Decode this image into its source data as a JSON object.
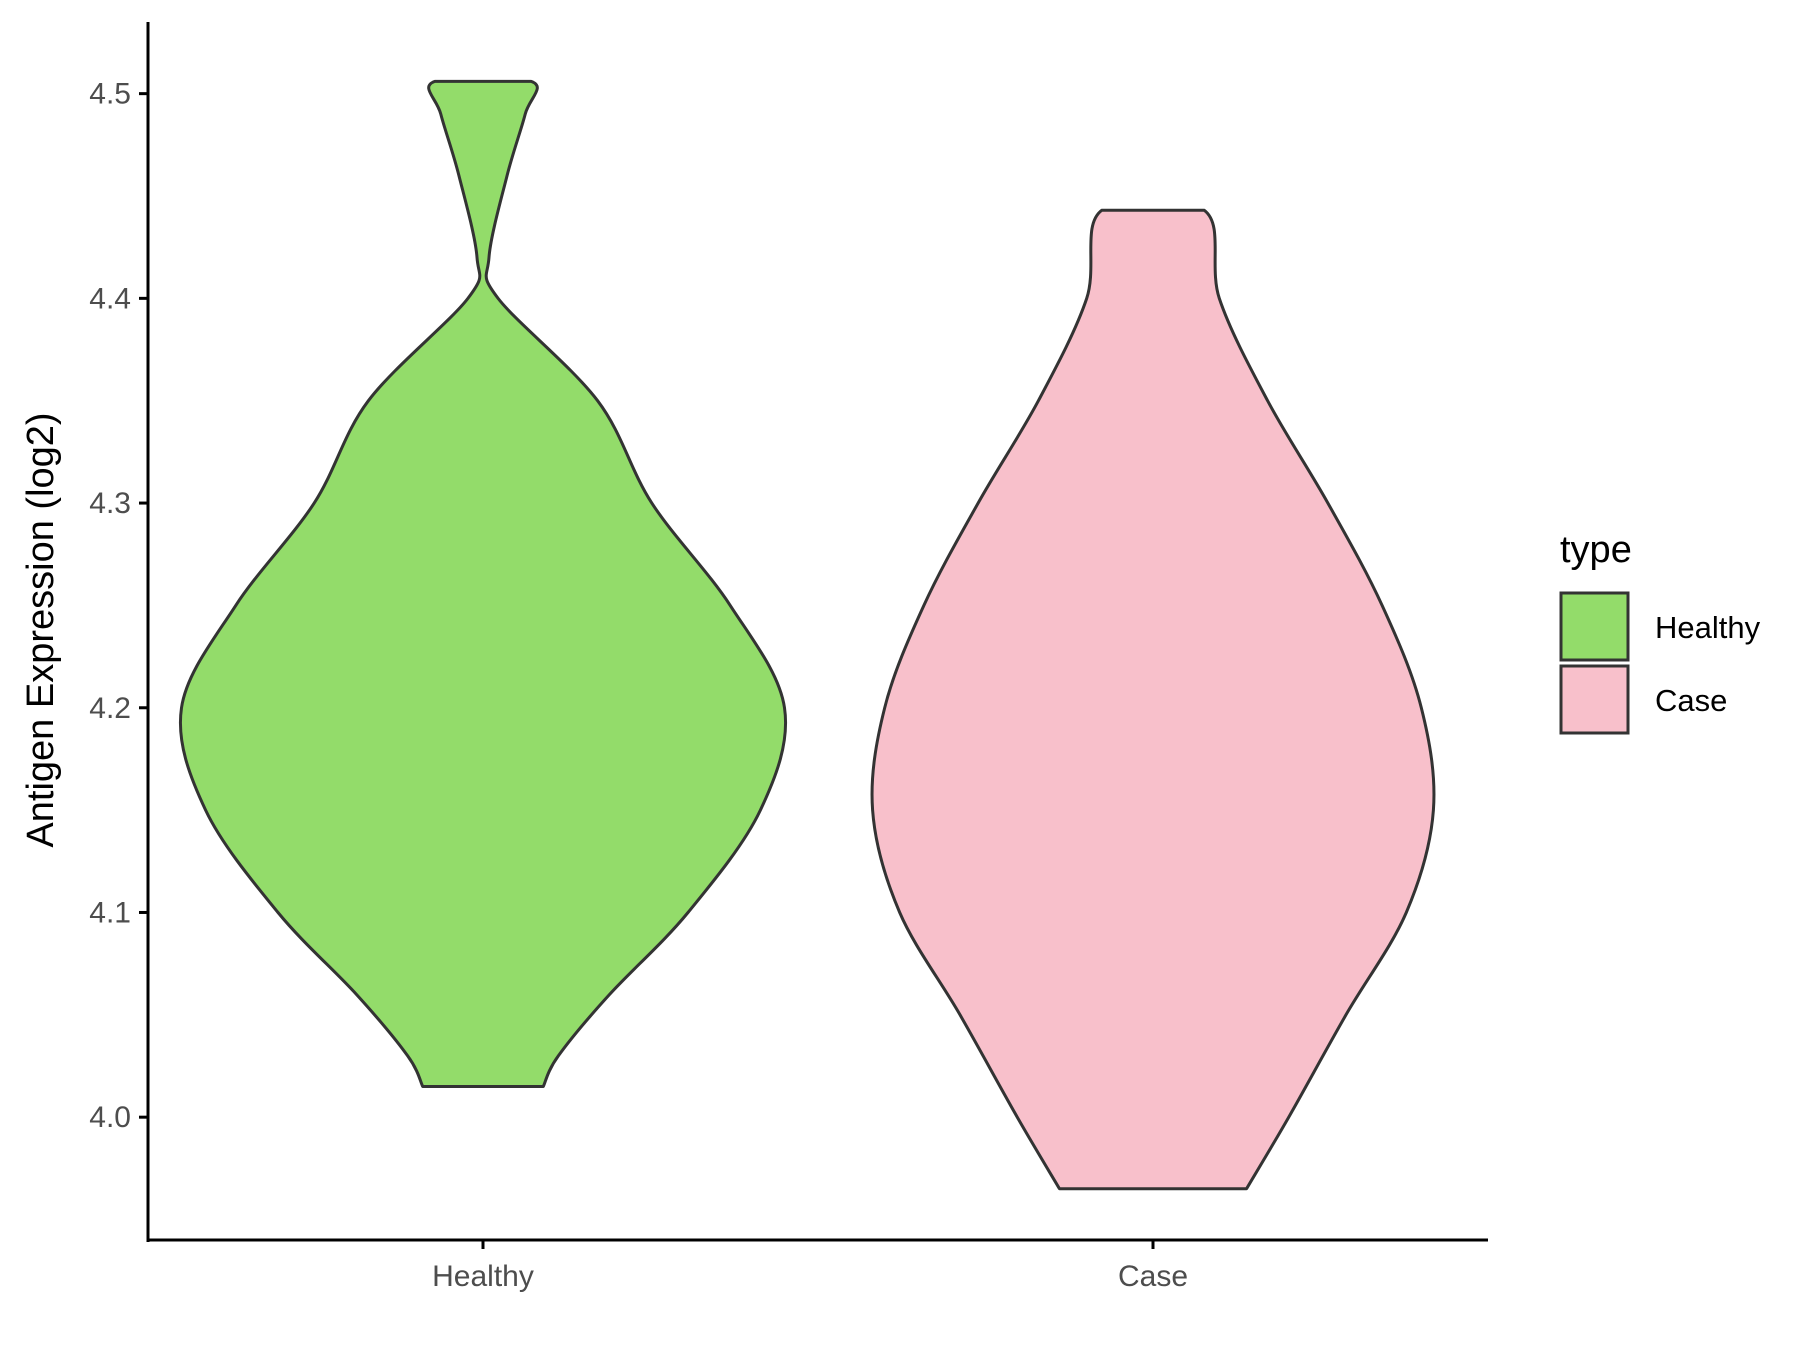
{
  "chart_data": {
    "type": "violin",
    "title": "",
    "xlabel": "",
    "ylabel": "Antigen Expression (log2)",
    "ylim": [
      3.94,
      4.535
    ],
    "yticks": [
      4.0,
      4.1,
      4.2,
      4.3,
      4.4,
      4.5
    ],
    "ytick_labels": [
      "4.0",
      "4.1",
      "4.2",
      "4.3",
      "4.4",
      "4.5"
    ],
    "categories": [
      "Healthy",
      "Case"
    ],
    "grid": false,
    "legend": {
      "title": "type",
      "position": "right",
      "entries": [
        {
          "label": "Healthy",
          "color": "#93dc6a"
        },
        {
          "label": "Case",
          "color": "#f8c0cb"
        }
      ]
    },
    "series": [
      {
        "name": "Healthy",
        "color": "#93dc6a",
        "min": 4.015,
        "max": 4.506,
        "density": [
          [
            4.015,
            0.2
          ],
          [
            4.03,
            0.25
          ],
          [
            4.06,
            0.42
          ],
          [
            4.1,
            0.68
          ],
          [
            4.15,
            0.92
          ],
          [
            4.2,
            1.0
          ],
          [
            4.25,
            0.82
          ],
          [
            4.3,
            0.56
          ],
          [
            4.35,
            0.38
          ],
          [
            4.4,
            0.05
          ],
          [
            4.42,
            0.02
          ],
          [
            4.46,
            0.08
          ],
          [
            4.49,
            0.14
          ],
          [
            4.506,
            0.16
          ]
        ]
      },
      {
        "name": "Case",
        "color": "#f8c0cb",
        "min": 3.965,
        "max": 4.443,
        "density": [
          [
            3.965,
            0.31
          ],
          [
            4.0,
            0.45
          ],
          [
            4.05,
            0.64
          ],
          [
            4.1,
            0.84
          ],
          [
            4.15,
            0.93
          ],
          [
            4.2,
            0.89
          ],
          [
            4.25,
            0.76
          ],
          [
            4.3,
            0.58
          ],
          [
            4.35,
            0.38
          ],
          [
            4.4,
            0.22
          ],
          [
            4.443,
            0.17
          ]
        ]
      }
    ]
  }
}
